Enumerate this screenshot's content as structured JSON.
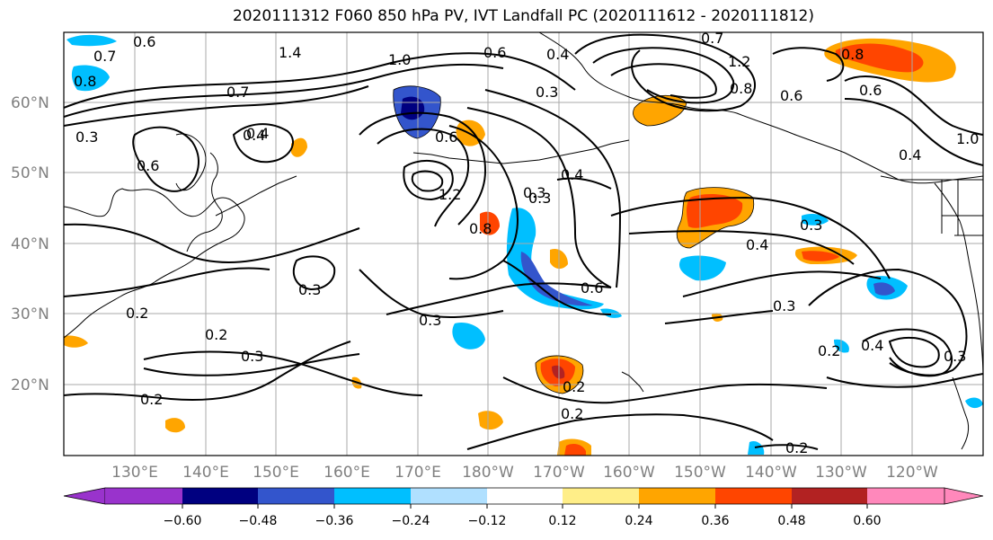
{
  "title": "2020111312 F060 850 hPa PV, IVT Landfall PC (2020111612 - 2020111812)",
  "lat_labels": [
    "60°N",
    "50°N",
    "40°N",
    "30°N",
    "20°N"
  ],
  "lon_labels": [
    "130°E",
    "140°E",
    "150°E",
    "160°E",
    "170°E",
    "180°W",
    "170°W",
    "160°W",
    "150°W",
    "140°W",
    "130°W",
    "120°W"
  ],
  "colorbar": {
    "colors": [
      "#9933cc",
      "#000080",
      "#3355cc",
      "#00bfff",
      "#b0e0ff",
      "#ffffff",
      "#ffee88",
      "#ffa500",
      "#ff4500",
      "#b22222",
      "#ff88bb"
    ],
    "ticks": [
      "−0.60",
      "−0.48",
      "−0.36",
      "−0.24",
      "−0.12",
      "0.12",
      "0.24",
      "0.36",
      "0.48",
      "0.60"
    ]
  },
  "contour_labels": [
    "0.6",
    "0.7",
    "0.8",
    "0.7",
    "0.3",
    "0.6",
    "0.4",
    "1.4",
    "1.0",
    "0.6",
    "0.4",
    "0.3",
    "0.7",
    "1.2",
    "0.8",
    "0.6",
    "0.4",
    "1.0",
    "0.6",
    "0.8",
    "0.4",
    "0.6",
    "1.2",
    "0.8",
    "0.3",
    "0.4",
    "0.4",
    "0.3",
    "0.6",
    "0.3",
    "0.3",
    "0.3",
    "0.2",
    "0.2",
    "0.3",
    "0.2",
    "0.2",
    "0.2",
    "0.2",
    "0.4",
    "0.2",
    "0.3",
    "0.3"
  ],
  "shading_colors": {
    "blue_dark": "#000080",
    "blue_mid": "#3355cc",
    "blue_light": "#00bfff",
    "orange": "#ffa500",
    "red": "#ff4500",
    "dark_red": "#b22222"
  }
}
